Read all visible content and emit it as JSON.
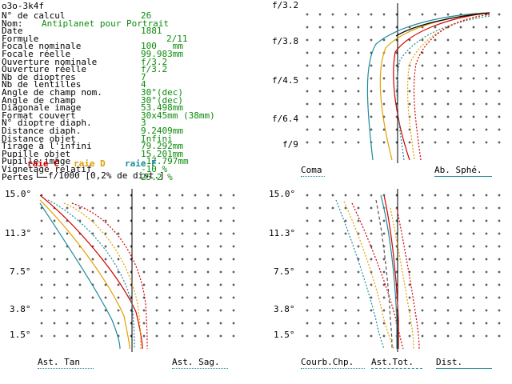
{
  "header": {
    "title": "o3o-3k4f"
  },
  "specs": [
    {
      "label": "N° de calcul",
      "value": "26"
    },
    {
      "label": "Nom:",
      "value": "Antiplanet pour Portrait"
    },
    {
      "label": "Date",
      "value": "1881"
    },
    {
      "label": "Formule",
      "value": "2/11"
    },
    {
      "label": "Focale nominale",
      "value": "100   mm"
    },
    {
      "label": "Focale réelle",
      "value": "99.983mm"
    },
    {
      "label": "Ouverture nominale",
      "value": "f/3.2"
    },
    {
      "label": "Ouverture réelle",
      "value": "f/3.2"
    },
    {
      "label": "Nb de dioptres",
      "value": "7"
    },
    {
      "label": "Nb de lentilles",
      "value": "4"
    },
    {
      "label": "Angle de champ nom.",
      "value": "30°(dec)"
    },
    {
      "label": "Angle de champ",
      "value": "30°(dec)"
    },
    {
      "label": "Diagonale image",
      "value": "53.498mm"
    },
    {
      "label": "Format couvert",
      "value": "30x45mm (38mm)"
    },
    {
      "label": "N° dioptre diaph.",
      "value": "3"
    },
    {
      "label": "Distance diaph.",
      "value": "9.2409mm"
    },
    {
      "label": "Distance objet",
      "value": "Infini"
    },
    {
      "label": "Tirage à l'infini",
      "value": "79.292mm"
    },
    {
      "label": "Pupille objet",
      "value": "15.201mm"
    },
    {
      "label": "Pupille image",
      "value": "-17.797mm"
    },
    {
      "label": "Vignetage relatif",
      "value": "-10 %"
    },
    {
      "label": "Pertes",
      "value": "25.2 %"
    }
  ],
  "legend": {
    "raie_c": "raie C",
    "raie_d": "raie D",
    "raie_f": "raie F",
    "scale_note": "f/1000 [0,2% de dist.]",
    "colors": {
      "c": "#d00000",
      "d": "#e0a000",
      "f": "#1f8a9a"
    }
  },
  "aperture_axis": [
    "f/3.2",
    "f/3.8",
    "f/4.5",
    "f/6.4",
    "f/9"
  ],
  "field_axis": [
    "15.0°",
    "11.3°",
    "7.5°",
    "3.8°",
    "1.5°"
  ],
  "plots": {
    "top_right": {
      "left_label": "Coma",
      "right_label": "Ab. Sphé."
    },
    "bottom_left": {
      "left_label": "Ast. Tan",
      "right_label": "Ast. Sag."
    },
    "bottom_right": {
      "label_1": "Courb.Chp.",
      "label_2": "Ast.Tot.",
      "label_3": "Dist."
    }
  }
}
